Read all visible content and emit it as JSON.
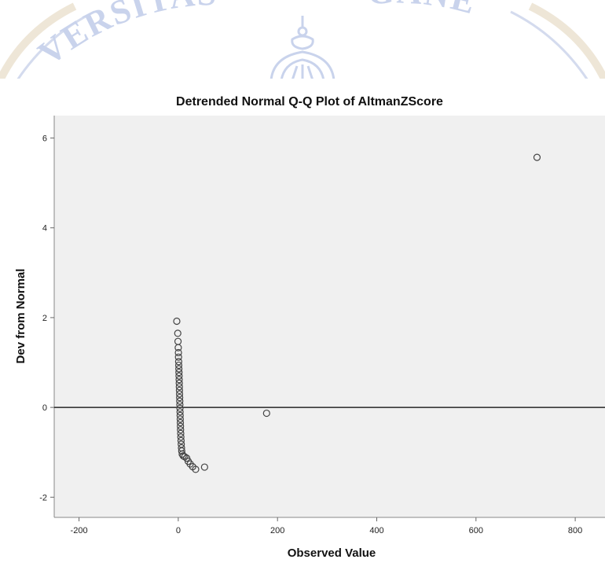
{
  "chart_data": {
    "type": "scatter",
    "title": "Detrended Normal Q-Q Plot of AltmanZScore",
    "xlabel": "Observed Value",
    "ylabel": "Dev from Normal",
    "xlim": [
      -250,
      860
    ],
    "ylim": [
      -2.45,
      6.5
    ],
    "xticks": [
      -200,
      0,
      200,
      400,
      600,
      800
    ],
    "yticks": [
      -2,
      0,
      2,
      4,
      6
    ],
    "reference_line_y": 0,
    "grid": false,
    "plot_background": "#f0f0f0",
    "marker_color": "#444444",
    "points": [
      {
        "x": -3,
        "y": 1.92
      },
      {
        "x": -1,
        "y": 1.65
      },
      {
        "x": -0.5,
        "y": 1.47
      },
      {
        "x": 0,
        "y": 1.33
      },
      {
        "x": 0.3,
        "y": 1.22
      },
      {
        "x": 0.5,
        "y": 1.12
      },
      {
        "x": 0.8,
        "y": 1.02
      },
      {
        "x": 1,
        "y": 0.94
      },
      {
        "x": 1.2,
        "y": 0.86
      },
      {
        "x": 1.4,
        "y": 0.78
      },
      {
        "x": 1.6,
        "y": 0.7
      },
      {
        "x": 1.8,
        "y": 0.62
      },
      {
        "x": 2,
        "y": 0.54
      },
      {
        "x": 2.2,
        "y": 0.46
      },
      {
        "x": 2.4,
        "y": 0.38
      },
      {
        "x": 2.6,
        "y": 0.3
      },
      {
        "x": 2.8,
        "y": 0.22
      },
      {
        "x": 3,
        "y": 0.14
      },
      {
        "x": 3.2,
        "y": 0.06
      },
      {
        "x": 3.4,
        "y": -0.02
      },
      {
        "x": 3.6,
        "y": -0.1
      },
      {
        "x": 3.8,
        "y": -0.18
      },
      {
        "x": 4,
        "y": -0.26
      },
      {
        "x": 4.2,
        "y": -0.34
      },
      {
        "x": 4.4,
        "y": -0.42
      },
      {
        "x": 4.6,
        "y": -0.5
      },
      {
        "x": 4.9,
        "y": -0.58
      },
      {
        "x": 5.2,
        "y": -0.66
      },
      {
        "x": 5.6,
        "y": -0.74
      },
      {
        "x": 6,
        "y": -0.82
      },
      {
        "x": 6.5,
        "y": -0.9
      },
      {
        "x": 7,
        "y": -0.97
      },
      {
        "x": 8,
        "y": -1.04
      },
      {
        "x": 10,
        "y": -1.08
      },
      {
        "x": 13,
        "y": -1.1
      },
      {
        "x": 17,
        "y": -1.13
      },
      {
        "x": 20,
        "y": -1.2
      },
      {
        "x": 24,
        "y": -1.26
      },
      {
        "x": 29,
        "y": -1.32
      },
      {
        "x": 35,
        "y": -1.38
      },
      {
        "x": 53,
        "y": -1.33
      },
      {
        "x": 178,
        "y": -0.13
      },
      {
        "x": 723,
        "y": 5.57
      }
    ]
  },
  "watermark": {
    "text_left": "VERSITAS",
    "text_right": "GANE",
    "color": "#c9d3ec"
  }
}
